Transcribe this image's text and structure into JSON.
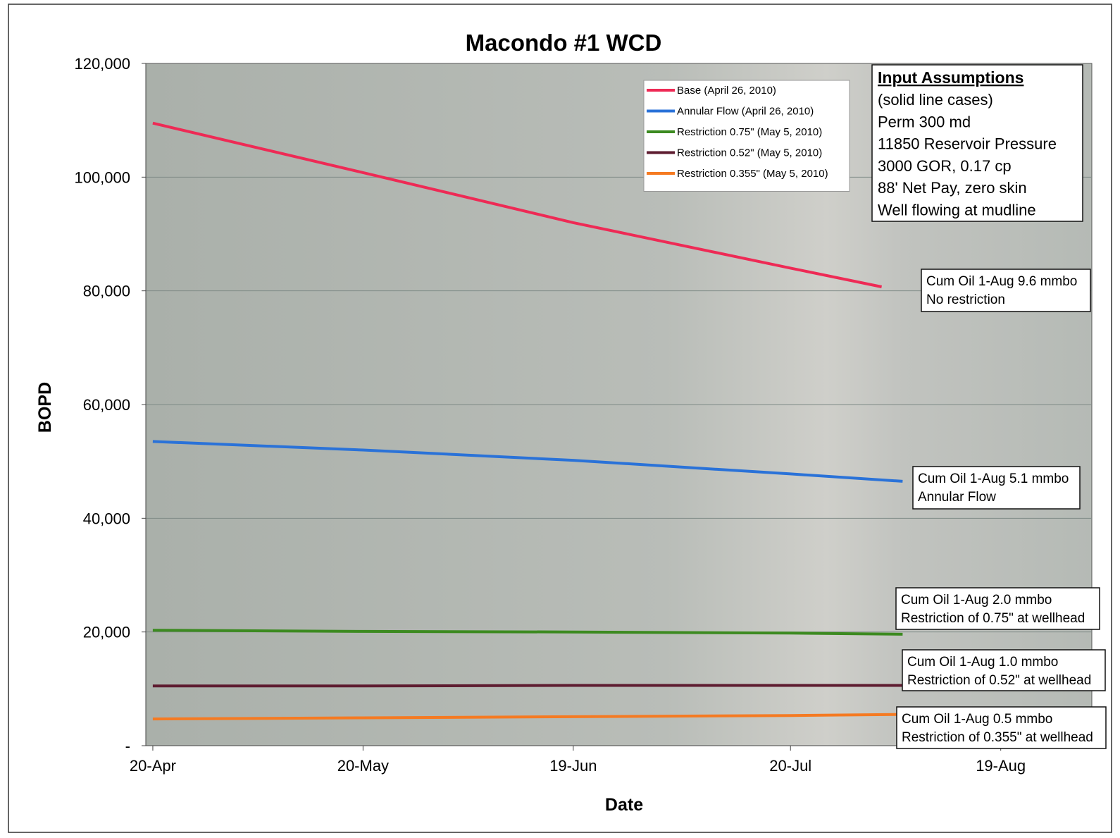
{
  "chart_data": {
    "type": "line",
    "title": "Macondo #1 WCD",
    "xlabel": "Date",
    "ylabel": "BOPD",
    "ylim": [
      0,
      120000
    ],
    "y_ticks": [
      0,
      20000,
      40000,
      60000,
      80000,
      100000,
      120000
    ],
    "y_tick_labels": [
      "-",
      "20,000",
      "40,000",
      "60,000",
      "80,000",
      "100,000",
      "120,000"
    ],
    "x_range": [
      "2010-04-19",
      "2010-09-01"
    ],
    "x_ticks": [
      "2010-04-20",
      "2010-05-20",
      "2010-06-19",
      "2010-07-20",
      "2010-08-19"
    ],
    "x_tick_labels": [
      "20-Apr",
      "20-May",
      "19-Jun",
      "20-Jul",
      "19-Aug"
    ],
    "grid": true,
    "legend_position": "top-center",
    "series": [
      {
        "name": "Base (April 26, 2010)",
        "color": "#ee2a55",
        "x": [
          "2010-04-20",
          "2010-05-20",
          "2010-06-19",
          "2010-07-20",
          "2010-08-02"
        ],
        "values": [
          109500,
          100800,
          92000,
          84000,
          80700
        ]
      },
      {
        "name": "Annular Flow  (April 26, 2010)",
        "color": "#2a72d8",
        "x": [
          "2010-04-20",
          "2010-05-20",
          "2010-06-19",
          "2010-07-20",
          "2010-08-05"
        ],
        "values": [
          53500,
          52000,
          50200,
          47800,
          46500
        ]
      },
      {
        "name": "Restriction 0.75\" (May 5, 2010)",
        "color": "#3c8a20",
        "x": [
          "2010-04-20",
          "2010-05-20",
          "2010-06-19",
          "2010-07-20",
          "2010-08-05"
        ],
        "values": [
          20300,
          20100,
          20000,
          19800,
          19600
        ]
      },
      {
        "name": "Restriction 0.52\" (May 5, 2010)",
        "color": "#5e1c30",
        "x": [
          "2010-04-20",
          "2010-05-20",
          "2010-06-19",
          "2010-07-20",
          "2010-08-05"
        ],
        "values": [
          10500,
          10500,
          10600,
          10600,
          10600
        ]
      },
      {
        "name": "Restriction 0.355\" (May 5, 2010)",
        "color": "#f57a22",
        "x": [
          "2010-04-20",
          "2010-05-20",
          "2010-06-19",
          "2010-07-20",
          "2010-08-05"
        ],
        "values": [
          4700,
          4900,
          5100,
          5300,
          5500
        ]
      }
    ],
    "annotations": [
      {
        "lines": [
          "Cum Oil 1-Aug 9.6 mmbo",
          "No restriction"
        ]
      },
      {
        "lines": [
          "Cum Oil 1-Aug 5.1 mmbo",
          "Annular Flow"
        ]
      },
      {
        "lines": [
          "Cum Oil 1-Aug 2.0 mmbo",
          "Restriction of 0.75\" at wellhead"
        ]
      },
      {
        "lines": [
          "Cum Oil 1-Aug 1.0 mmbo",
          "Restriction of 0.52\" at wellhead"
        ]
      },
      {
        "lines": [
          "Cum Oil 1-Aug 0.5 mmbo",
          "Restriction of 0.355\" at wellhead"
        ]
      }
    ],
    "input_assumptions": {
      "heading": "Input Assumptions",
      "lines": [
        "(solid line cases)",
        "Perm 300 md",
        "11850 Reservoir Pressure",
        "3000 GOR, 0.17 cp",
        "88' Net Pay, zero skin",
        "Well flowing at mudline"
      ]
    }
  }
}
